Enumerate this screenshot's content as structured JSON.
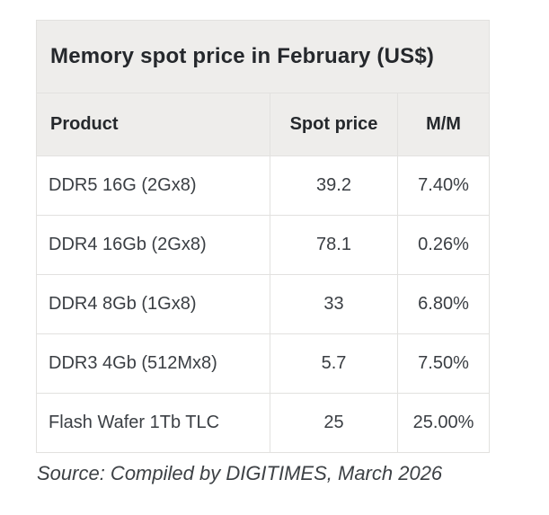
{
  "chart_data": {
    "type": "table",
    "title": "Memory spot price in February (US$)",
    "columns": [
      "Product",
      "Spot price",
      "M/M"
    ],
    "rows": [
      [
        "DDR5 16G (2Gx8)",
        "39.2",
        "7.40%"
      ],
      [
        "DDR4 16Gb (2Gx8)",
        "78.1",
        "0.26%"
      ],
      [
        "DDR4 8Gb (1Gx8)",
        "33",
        "6.80%"
      ],
      [
        "DDR3 4Gb (512Mx8)",
        "5.7",
        "7.50%"
      ],
      [
        "Flash Wafer 1Tb TLC",
        "25",
        "25.00%"
      ]
    ],
    "source": "Source: Compiled by DIGITIMES, March 2026"
  },
  "colors": {
    "header_bg": "#eeedeb",
    "border": "#e2e1df",
    "title_text": "#25282c",
    "cell_text": "#3a3e43",
    "source_text": "#3d4145",
    "page_bg": "#ffffff"
  }
}
